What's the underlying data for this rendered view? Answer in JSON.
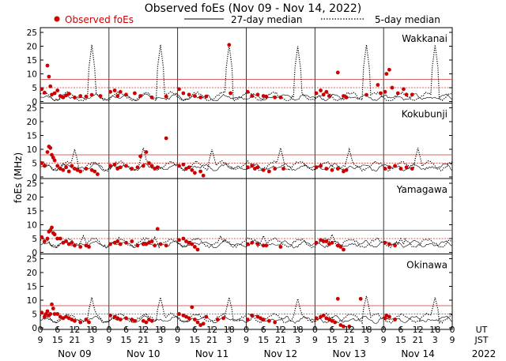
{
  "chart_data": {
    "type": "scatter",
    "title": "Observed foEs (Nov 09 - Nov 14, 2022)",
    "legend": [
      {
        "name": "Observed foEs",
        "marker": "dot",
        "color": "#cc0000"
      },
      {
        "name": "27-day median",
        "marker": "solid-line",
        "color": "#000000"
      },
      {
        "name": "5-day median",
        "marker": "dotted-line",
        "color": "#000000"
      }
    ],
    "ylabel": "foEs (MHz)",
    "ylim": [
      0,
      25
    ],
    "yticks": [
      "0",
      "5",
      "10",
      "15",
      "20",
      "25"
    ],
    "reference_lines_mhz": [
      5,
      8
    ],
    "x_range_hours": [
      0,
      144
    ],
    "ut_tick_labels": [
      "0",
      "6",
      "12",
      "18",
      "0",
      "6",
      "12",
      "18",
      "0",
      "6",
      "12",
      "18",
      "0",
      "6",
      "12",
      "18",
      "0",
      "6",
      "12",
      "18",
      "0",
      "6",
      "12",
      "18",
      "0"
    ],
    "jst_tick_labels": [
      "9",
      "15",
      "21",
      "3",
      "9",
      "15",
      "21",
      "3",
      "9",
      "15",
      "21",
      "3",
      "9",
      "15",
      "21",
      "3",
      "9",
      "15",
      "21",
      "3",
      "9",
      "15",
      "21",
      "3",
      "9"
    ],
    "day_labels": [
      "Nov 09",
      "Nov 10",
      "Nov 11",
      "Nov 12",
      "Nov 13",
      "Nov 14"
    ],
    "ut_label": "UT",
    "jst_label": "JST",
    "year_label": "2022",
    "panels": [
      {
        "station": "Wakkanai",
        "observed": [
          [
            0.5,
            4.5
          ],
          [
            1.5,
            3.2
          ],
          [
            2.5,
            13
          ],
          [
            3,
            9
          ],
          [
            3.5,
            5.5
          ],
          [
            4,
            2.5
          ],
          [
            5,
            3
          ],
          [
            6,
            4
          ],
          [
            7,
            2
          ],
          [
            8,
            1.5
          ],
          [
            9,
            2.2
          ],
          [
            10,
            2.8
          ],
          [
            12,
            1.5
          ],
          [
            14,
            2
          ],
          [
            16,
            1.8
          ],
          [
            18,
            2.4
          ],
          [
            21,
            2
          ],
          [
            24.5,
            3.5
          ],
          [
            26,
            4
          ],
          [
            27,
            2
          ],
          [
            28,
            3.5
          ],
          [
            30,
            2.5
          ],
          [
            33,
            3
          ],
          [
            35,
            2
          ],
          [
            39,
            1.5
          ],
          [
            44,
            1.8
          ],
          [
            48.5,
            4.5
          ],
          [
            50,
            3
          ],
          [
            52,
            2.5
          ],
          [
            54,
            2
          ],
          [
            56,
            1.5
          ],
          [
            58,
            1.8
          ],
          [
            66,
            20.5
          ],
          [
            66.5,
            3
          ],
          [
            72.5,
            3.5
          ],
          [
            74,
            2
          ],
          [
            76,
            2.5
          ],
          [
            78,
            2
          ],
          [
            79,
            1.8
          ],
          [
            82,
            1.5
          ],
          [
            84,
            1.5
          ],
          [
            96.5,
            3
          ],
          [
            98,
            4
          ],
          [
            99,
            2.5
          ],
          [
            100,
            3.5
          ],
          [
            101,
            2
          ],
          [
            104,
            10.5
          ],
          [
            106,
            2
          ],
          [
            107,
            1.5
          ],
          [
            114,
            2.4
          ],
          [
            118,
            6
          ],
          [
            119,
            3
          ],
          [
            120.5,
            3.5
          ],
          [
            121,
            10
          ],
          [
            122,
            11.5
          ],
          [
            123,
            5
          ],
          [
            125,
            3
          ],
          [
            127,
            4.5
          ],
          [
            128,
            2.5
          ],
          [
            130,
            2.5
          ]
        ],
        "median27": 1.5,
        "median5": 1.8,
        "spikes": [
          [
            18,
            20.5
          ],
          [
            42,
            20.5
          ],
          [
            66,
            20.5
          ],
          [
            90,
            20
          ],
          [
            114,
            20.5
          ],
          [
            138,
            20.5
          ]
        ]
      },
      {
        "station": "Kokubunji",
        "observed": [
          [
            0.5,
            5
          ],
          [
            1.5,
            4
          ],
          [
            2.5,
            9
          ],
          [
            3,
            11
          ],
          [
            3.5,
            10.5
          ],
          [
            4,
            8
          ],
          [
            4.5,
            7
          ],
          [
            5,
            6
          ],
          [
            6,
            4
          ],
          [
            7,
            3
          ],
          [
            8,
            2.5
          ],
          [
            9,
            3.5
          ],
          [
            10,
            2
          ],
          [
            11,
            4
          ],
          [
            12,
            3
          ],
          [
            13,
            2.5
          ],
          [
            14,
            2
          ],
          [
            16,
            3
          ],
          [
            18,
            2.5
          ],
          [
            19,
            2
          ],
          [
            20,
            1
          ],
          [
            24.5,
            4
          ],
          [
            26,
            4.5
          ],
          [
            27,
            3
          ],
          [
            28,
            3.5
          ],
          [
            30,
            4
          ],
          [
            32,
            3
          ],
          [
            34,
            3.5
          ],
          [
            35,
            7.5
          ],
          [
            36,
            4
          ],
          [
            37,
            9
          ],
          [
            38,
            5
          ],
          [
            39,
            4
          ],
          [
            40,
            3
          ],
          [
            41,
            3.5
          ],
          [
            44,
            14
          ],
          [
            48.5,
            4
          ],
          [
            50,
            4.5
          ],
          [
            51,
            3
          ],
          [
            52,
            3.5
          ],
          [
            53,
            2.5
          ],
          [
            54,
            1.5
          ],
          [
            56,
            2
          ],
          [
            57,
            0.5
          ],
          [
            72.5,
            3.5
          ],
          [
            74,
            4
          ],
          [
            75,
            3
          ],
          [
            76,
            3.5
          ],
          [
            78,
            2.5
          ],
          [
            80,
            2
          ],
          [
            82,
            3
          ],
          [
            85,
            3
          ],
          [
            96.5,
            3.5
          ],
          [
            98,
            4
          ],
          [
            100,
            3
          ],
          [
            102,
            2.5
          ],
          [
            104,
            3
          ],
          [
            106,
            2
          ],
          [
            107,
            2.5
          ],
          [
            120.5,
            3
          ],
          [
            122,
            3.5
          ],
          [
            124,
            4
          ],
          [
            126,
            3
          ],
          [
            128,
            3.5
          ],
          [
            130,
            3
          ]
        ],
        "median27": 3.5,
        "median5": 4,
        "spikes": [
          [
            12,
            10
          ],
          [
            36,
            10.5
          ],
          [
            60,
            10
          ],
          [
            84,
            10.5
          ],
          [
            108,
            10
          ],
          [
            132,
            10.5
          ]
        ]
      },
      {
        "station": "Yamagawa",
        "observed": [
          [
            0.5,
            5.5
          ],
          [
            1.5,
            4
          ],
          [
            2.5,
            5
          ],
          [
            3,
            7.5
          ],
          [
            3.5,
            8
          ],
          [
            4,
            9
          ],
          [
            4.5,
            7
          ],
          [
            5,
            6.5
          ],
          [
            6,
            5
          ],
          [
            7,
            5
          ],
          [
            8,
            3.5
          ],
          [
            9,
            4
          ],
          [
            10,
            3
          ],
          [
            11,
            3.5
          ],
          [
            12,
            2.5
          ],
          [
            14,
            2
          ],
          [
            16,
            2.5
          ],
          [
            17,
            2
          ],
          [
            24.5,
            3
          ],
          [
            26,
            3.5
          ],
          [
            27,
            4
          ],
          [
            28,
            3
          ],
          [
            30,
            3.5
          ],
          [
            32,
            4
          ],
          [
            34,
            2.5
          ],
          [
            36,
            3
          ],
          [
            37,
            3
          ],
          [
            38,
            3.5
          ],
          [
            39,
            4
          ],
          [
            40,
            2.5
          ],
          [
            41,
            8.5
          ],
          [
            42,
            3
          ],
          [
            44,
            2.5
          ],
          [
            48.5,
            4.5
          ],
          [
            50,
            5
          ],
          [
            51,
            4
          ],
          [
            52,
            3.5
          ],
          [
            53,
            3
          ],
          [
            54,
            2
          ],
          [
            55,
            1
          ],
          [
            72.5,
            3
          ],
          [
            74,
            3.5
          ],
          [
            76,
            3
          ],
          [
            78,
            2.5
          ],
          [
            79,
            2.5
          ],
          [
            84,
            2
          ],
          [
            96.5,
            3.5
          ],
          [
            98,
            4.5
          ],
          [
            99,
            4
          ],
          [
            100,
            4
          ],
          [
            101,
            3
          ],
          [
            102,
            3.5
          ],
          [
            104,
            2.5
          ],
          [
            105,
            2
          ],
          [
            106,
            1
          ],
          [
            120.5,
            3.5
          ],
          [
            122,
            3
          ],
          [
            124,
            2.5
          ]
        ],
        "median27": 3,
        "median5": 3.5,
        "spikes": [
          [
            15,
            6
          ],
          [
            40,
            5.5
          ],
          [
            63,
            6
          ],
          [
            78,
            6
          ],
          [
            102,
            6.5
          ],
          [
            126,
            5
          ]
        ]
      },
      {
        "station": "Okinawa",
        "observed": [
          [
            0.5,
            5.5
          ],
          [
            1.5,
            4
          ],
          [
            2,
            5
          ],
          [
            2.5,
            6
          ],
          [
            3,
            4.5
          ],
          [
            3.5,
            5
          ],
          [
            4,
            8.5
          ],
          [
            4.5,
            7
          ],
          [
            5,
            5
          ],
          [
            6,
            5
          ],
          [
            7,
            4
          ],
          [
            8,
            3.5
          ],
          [
            9,
            4
          ],
          [
            10,
            3.5
          ],
          [
            11,
            3
          ],
          [
            12,
            2.5
          ],
          [
            14,
            2
          ],
          [
            16,
            3
          ],
          [
            17,
            2
          ],
          [
            24.5,
            4.5
          ],
          [
            26,
            4
          ],
          [
            27,
            3.5
          ],
          [
            28,
            3
          ],
          [
            30,
            3.5
          ],
          [
            32,
            3
          ],
          [
            33,
            2.5
          ],
          [
            36,
            2.5
          ],
          [
            37,
            2
          ],
          [
            38,
            3
          ],
          [
            39,
            2.5
          ],
          [
            48.5,
            5
          ],
          [
            50,
            4.5
          ],
          [
            51,
            4
          ],
          [
            52,
            3.5
          ],
          [
            53,
            7.5
          ],
          [
            54,
            3
          ],
          [
            55,
            2
          ],
          [
            56,
            1
          ],
          [
            57,
            1.5
          ],
          [
            58,
            4
          ],
          [
            62,
            3
          ],
          [
            64,
            3.5
          ],
          [
            72.5,
            3
          ],
          [
            74,
            4.5
          ],
          [
            76,
            4
          ],
          [
            77,
            3.5
          ],
          [
            78,
            3
          ],
          [
            80,
            2.5
          ],
          [
            82,
            2
          ],
          [
            96.5,
            3.5
          ],
          [
            98,
            4
          ],
          [
            99,
            4.5
          ],
          [
            100,
            3.5
          ],
          [
            101,
            3
          ],
          [
            102,
            2.5
          ],
          [
            103,
            2
          ],
          [
            104,
            10.5
          ],
          [
            105,
            1
          ],
          [
            106,
            0.5
          ],
          [
            108,
            0.5
          ],
          [
            112,
            10.5
          ],
          [
            120.5,
            3.5
          ],
          [
            121,
            4.5
          ],
          [
            122,
            4
          ],
          [
            124,
            3
          ]
        ],
        "median27": 3,
        "median5": 3.5,
        "spikes": [
          [
            18,
            11
          ],
          [
            42,
            11
          ],
          [
            66,
            11
          ],
          [
            90,
            10.5
          ],
          [
            114,
            11.5
          ],
          [
            138,
            11
          ]
        ]
      }
    ]
  }
}
